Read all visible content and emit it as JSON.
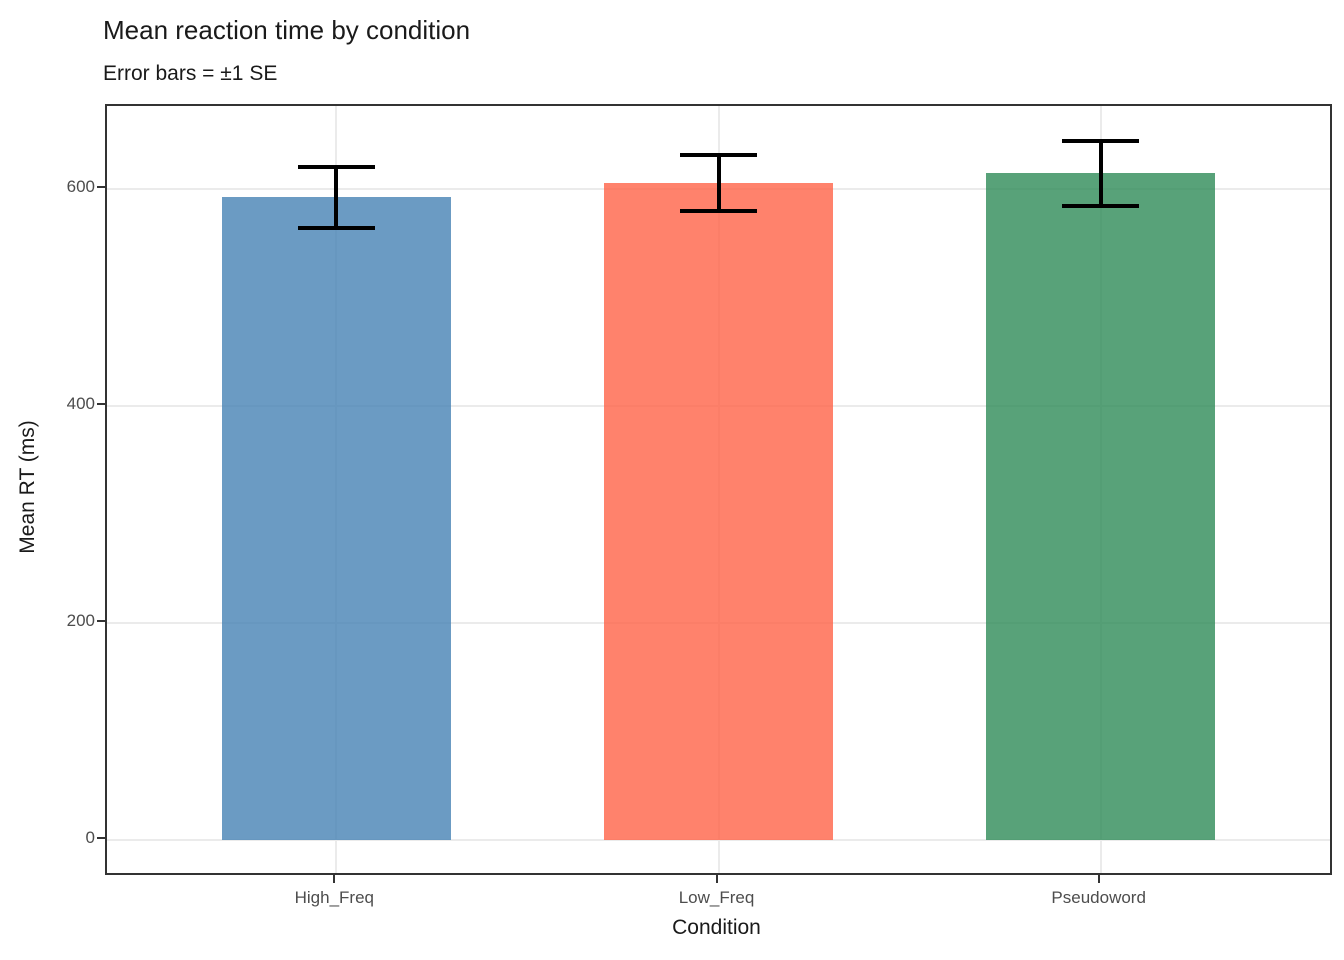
{
  "title": "Mean reaction time by condition",
  "subtitle": "Error bars = ±1 SE",
  "chart_data": {
    "type": "bar",
    "title": "Mean reaction time by condition",
    "subtitle": "Error bars = ±1 SE",
    "xlabel": "Condition",
    "ylabel": "Mean RT (ms)",
    "categories": [
      "High_Freq",
      "Low_Freq",
      "Pseudoword"
    ],
    "values": [
      592,
      605,
      614
    ],
    "se": [
      28,
      26,
      30
    ],
    "y_ticks": [
      0,
      200,
      400,
      600
    ],
    "ylim": [
      -30,
      676
    ],
    "grid": "major horizontal and vertical, light gray, no minor",
    "legend_position": "none",
    "bar_width_frac": 0.6,
    "errorbar_cap_frac": 0.2,
    "colors": {
      "bar_fills": [
        "rgba(70,130,180,0.8)",
        "rgba(255,99,71,0.8)",
        "rgba(46,139,87,0.8)"
      ],
      "bar_fills_flat_hex": [
        "#6b9bc2",
        "#fb826f",
        "#58a279"
      ],
      "errorbar": "#000000",
      "gridline": "#ebebeb",
      "panel_border": "#333333",
      "tick_label": "#4d4d4d",
      "text": "#1a1a1a"
    }
  }
}
